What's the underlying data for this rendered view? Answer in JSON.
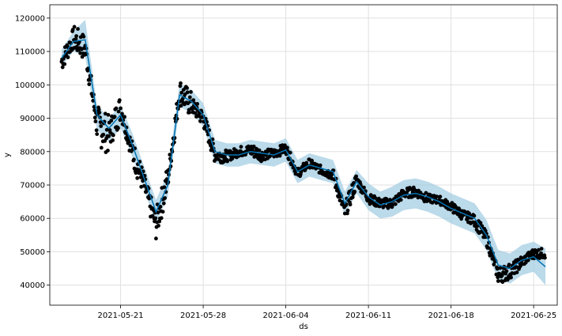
{
  "chart_data": {
    "type": "line",
    "title": "",
    "xlabel": "ds",
    "ylabel": "y",
    "grid": true,
    "x_is_date": true,
    "xlim": [
      "2021-05-15",
      "2021-06-27"
    ],
    "ylim": [
      34000,
      124000
    ],
    "x_ticks": [
      "2021-05-21",
      "2021-05-28",
      "2021-06-04",
      "2021-06-11",
      "2021-06-18",
      "2021-06-25"
    ],
    "y_ticks": [
      40000,
      50000,
      60000,
      70000,
      80000,
      90000,
      100000,
      110000,
      120000
    ],
    "colors": {
      "observed": "#000000",
      "forecast": "#0072B2",
      "uncertainty": "#9ecae1"
    },
    "series": [
      {
        "kind": "forecast",
        "x": [
          "2021-05-16",
          "2021-05-17",
          "2021-05-18",
          "2021-05-19",
          "2021-05-20",
          "2021-05-21",
          "2021-05-22",
          "2021-05-23",
          "2021-05-24",
          "2021-05-25",
          "2021-05-26",
          "2021-05-27",
          "2021-05-28",
          "2021-05-29",
          "2021-05-30",
          "2021-05-31",
          "2021-06-01",
          "2021-06-02",
          "2021-06-03",
          "2021-06-04",
          "2021-06-05",
          "2021-06-06",
          "2021-06-07",
          "2021-06-08",
          "2021-06-09",
          "2021-06-10",
          "2021-06-11",
          "2021-06-12",
          "2021-06-13",
          "2021-06-14",
          "2021-06-15",
          "2021-06-16",
          "2021-06-17",
          "2021-06-18",
          "2021-06-19",
          "2021-06-20",
          "2021-06-21",
          "2021-06-22",
          "2021-06-23",
          "2021-06-24",
          "2021-06-25",
          "2021-06-26"
        ],
        "values": [
          108000,
          113000,
          113500,
          91000,
          87000,
          91000,
          82000,
          72000,
          62000,
          70000,
          97000,
          95000,
          91000,
          80000,
          79000,
          79000,
          80000,
          79500,
          79000,
          80500,
          74000,
          76000,
          75000,
          74000,
          64500,
          71000,
          66500,
          64000,
          65000,
          67000,
          67500,
          66500,
          65000,
          63000,
          61500,
          60000,
          55000,
          46000,
          45000,
          47500,
          48500,
          45500
        ]
      },
      {
        "kind": "uncertainty_upper",
        "values": [
          110500,
          116000,
          119500,
          94000,
          90000,
          94000,
          85500,
          75500,
          65500,
          73500,
          100500,
          98500,
          94500,
          83500,
          82500,
          82500,
          83500,
          83000,
          82500,
          84000,
          77500,
          79500,
          78500,
          77500,
          68000,
          74500,
          70500,
          68000,
          69500,
          71500,
          72000,
          71000,
          69500,
          67500,
          66000,
          64500,
          59500,
          50500,
          49500,
          52000,
          53000,
          51000
        ]
      },
      {
        "kind": "uncertainty_lower",
        "values": [
          105500,
          110000,
          108500,
          86500,
          83000,
          87000,
          78500,
          68500,
          58500,
          66500,
          93500,
          91500,
          87500,
          76500,
          75500,
          75500,
          76500,
          76000,
          75500,
          77000,
          70500,
          72500,
          71500,
          70500,
          61000,
          67500,
          62500,
          60000,
          60500,
          62500,
          63000,
          62000,
          60500,
          58500,
          57000,
          55500,
          50500,
          41500,
          40500,
          43000,
          44000,
          40000
        ]
      },
      {
        "kind": "observed",
        "x": [
          "2021-05-16",
          "2021-05-17",
          "2021-05-18",
          "2021-05-19",
          "2021-05-20",
          "2021-05-21",
          "2021-05-22",
          "2021-05-23",
          "2021-05-24",
          "2021-05-25",
          "2021-05-26",
          "2021-05-27",
          "2021-05-28",
          "2021-05-29",
          "2021-05-30",
          "2021-05-31",
          "2021-06-01",
          "2021-06-02",
          "2021-06-03",
          "2021-06-04",
          "2021-06-05",
          "2021-06-06",
          "2021-06-07",
          "2021-06-08",
          "2021-06-09",
          "2021-06-10",
          "2021-06-11",
          "2021-06-12",
          "2021-06-13",
          "2021-06-14",
          "2021-06-15",
          "2021-06-16",
          "2021-06-17",
          "2021-06-18",
          "2021-06-19",
          "2021-06-20",
          "2021-06-21",
          "2021-06-22",
          "2021-06-23",
          "2021-06-24",
          "2021-06-25"
        ],
        "values": [
          107000,
          114000,
          111000,
          88000,
          85000,
          93000,
          80000,
          70000,
          58000,
          72000,
          98000,
          94000,
          90000,
          79000,
          78500,
          80000,
          80500,
          79000,
          79500,
          81000,
          73500,
          76500,
          74500,
          73000,
          62000,
          71500,
          66000,
          64500,
          64500,
          67500,
          68000,
          66000,
          65500,
          63500,
          61000,
          59500,
          54000,
          43000,
          44000,
          47000,
          49500
        ],
        "spread": [
          6000,
          8000,
          7000,
          12000,
          9000,
          6000,
          8000,
          7000,
          9000,
          7000,
          8000,
          5000,
          5000,
          4000,
          3000,
          3000,
          4000,
          3000,
          3000,
          3000,
          3000,
          2500,
          3000,
          4000,
          5000,
          3000,
          3000,
          3000,
          3000,
          3000,
          3000,
          2500,
          2500,
          3000,
          3000,
          4000,
          4000,
          5000,
          4000,
          3000,
          3000
        ]
      }
    ]
  }
}
